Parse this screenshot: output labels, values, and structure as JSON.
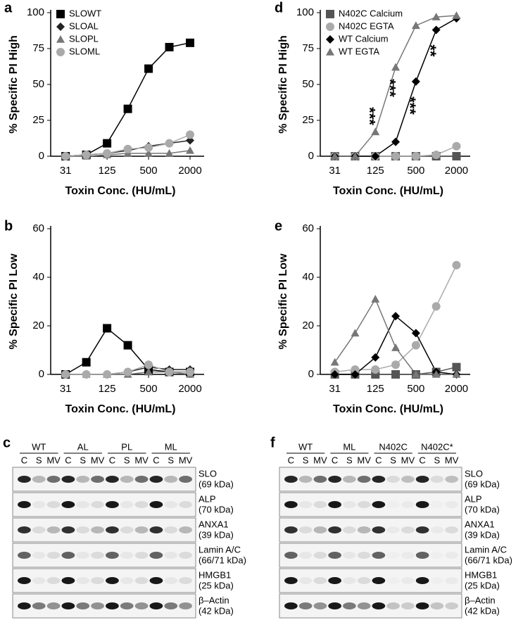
{
  "chart_data": [
    {
      "type": "line",
      "label": "a",
      "x_label": "Toxin Conc. (HU/mL)",
      "y_label": "% Specific PI High",
      "log_x": true,
      "legend": "upper left",
      "x": [
        31.25,
        62.5,
        125,
        250,
        500,
        1000,
        2000
      ],
      "xlim": [
        19,
        3200
      ],
      "xticks": [
        {
          "value": 31.25,
          "label": "31"
        },
        125,
        500,
        2000
      ],
      "ylim": [
        0,
        100
      ],
      "yticks": [
        0,
        25,
        50,
        75,
        100
      ],
      "series": [
        {
          "name": "SLOWT",
          "color": "#000000",
          "marker": "square",
          "values": [
            0,
            1,
            9,
            33,
            61,
            76,
            79
          ]
        },
        {
          "name": "SLOAL",
          "color": "#222222",
          "marker": "diamond",
          "values": [
            0,
            1,
            2,
            4,
            7,
            9,
            11
          ]
        },
        {
          "name": "SLOPL",
          "color": "#777777",
          "marker": "triangle",
          "values": [
            0,
            0,
            1,
            2,
            2,
            2,
            4
          ]
        },
        {
          "name": "SLOML",
          "color": "#aaaaaa",
          "marker": "circle",
          "values": [
            0,
            1,
            2,
            5,
            6,
            9,
            15
          ]
        }
      ]
    },
    {
      "type": "line",
      "label": "b",
      "x_label": "Toxin Conc. (HU/mL)",
      "y_label": "% Specific PI Low",
      "log_x": true,
      "x": [
        31.25,
        62.5,
        125,
        250,
        500,
        1000,
        2000
      ],
      "xlim": [
        19,
        3200
      ],
      "xticks": [
        {
          "value": 31.25,
          "label": "31"
        },
        125,
        500,
        2000
      ],
      "ylim": [
        0,
        60
      ],
      "yticks": [
        0,
        20,
        40,
        60
      ],
      "series": [
        {
          "color": "#000000",
          "marker": "square",
          "values": [
            0,
            5,
            19,
            12,
            2,
            1,
            1
          ]
        },
        {
          "color": "#222222",
          "marker": "diamond",
          "values": [
            0,
            0,
            0,
            1,
            3,
            2,
            2
          ]
        },
        {
          "color": "#777777",
          "marker": "triangle",
          "values": [
            0,
            0,
            0,
            0,
            1,
            1,
            0
          ]
        },
        {
          "color": "#aaaaaa",
          "marker": "circle",
          "values": [
            0,
            0,
            0,
            1,
            4,
            1,
            1
          ]
        }
      ]
    },
    {
      "type": "line",
      "label": "d",
      "x_label": "Toxin Conc. (HU/mL)",
      "y_label": "% Specific PI High",
      "log_x": true,
      "legend": "upper left",
      "x": [
        31.25,
        62.5,
        125,
        250,
        500,
        1000,
        2000
      ],
      "xlim": [
        19,
        3200
      ],
      "xticks": [
        {
          "value": 31.25,
          "label": "31"
        },
        125,
        500,
        2000
      ],
      "ylim": [
        0,
        100
      ],
      "yticks": [
        0,
        25,
        50,
        75,
        100
      ],
      "annotations": [
        {
          "text": "***",
          "x": 125
        },
        {
          "text": "***",
          "x": 250
        },
        {
          "text": "***",
          "x": 500
        },
        {
          "text": "**",
          "x": 1000
        }
      ],
      "series": [
        {
          "name": "N402C Calcium",
          "color": "#555555",
          "marker": "square",
          "values": [
            0,
            0,
            0,
            0,
            0,
            0,
            0
          ]
        },
        {
          "name": "N402C EGTA",
          "color": "#aaaaaa",
          "marker": "circle",
          "values": [
            0,
            0,
            0,
            0,
            0,
            1,
            7
          ]
        },
        {
          "name": "WT Calcium",
          "color": "#000000",
          "marker": "diamond",
          "values": [
            0,
            0,
            0,
            10,
            52,
            88,
            96
          ]
        },
        {
          "name": "WT EGTA",
          "color": "#777777",
          "marker": "triangle",
          "values": [
            0,
            0,
            17,
            62,
            91,
            97,
            98
          ]
        }
      ]
    },
    {
      "type": "line",
      "label": "e",
      "x_label": "Toxin Conc. (HU/mL)",
      "y_label": "% Specific PI Low",
      "log_x": true,
      "x": [
        31.25,
        62.5,
        125,
        250,
        500,
        1000,
        2000
      ],
      "xlim": [
        19,
        3200
      ],
      "xticks": [
        {
          "value": 31.25,
          "label": "31"
        },
        125,
        500,
        2000
      ],
      "ylim": [
        0,
        60
      ],
      "yticks": [
        0,
        20,
        40,
        60
      ],
      "series": [
        {
          "color": "#555555",
          "marker": "square",
          "values": [
            0,
            0,
            0,
            0,
            0,
            1,
            3
          ]
        },
        {
          "color": "#aaaaaa",
          "marker": "circle",
          "values": [
            1,
            2,
            2,
            4,
            12,
            28,
            45
          ]
        },
        {
          "color": "#000000",
          "marker": "diamond",
          "values": [
            0,
            0,
            7,
            24,
            17,
            1,
            0
          ]
        },
        {
          "color": "#777777",
          "marker": "triangle",
          "values": [
            5,
            17,
            31,
            11,
            0,
            0,
            0
          ]
        }
      ]
    }
  ],
  "blots": [
    {
      "label": "c",
      "groups": [
        "WT",
        "AL",
        "PL",
        "ML"
      ],
      "lanes": [
        "C",
        "S",
        "MV"
      ],
      "rows": [
        {
          "name": "SLO",
          "size": "(69 kDa)"
        },
        {
          "name": "ALP",
          "size": "(70 kDa)"
        },
        {
          "name": "ANXA1",
          "size": "(39 kDa)"
        },
        {
          "name": "Lamin A/C",
          "size": "(66/71 kDa)"
        },
        {
          "name": "HMGB1",
          "size": "(25 kDa)"
        },
        {
          "name": "β–Actin",
          "size": "(42 kDa)"
        }
      ]
    },
    {
      "label": "f",
      "groups": [
        "WT",
        "ML",
        "N402C",
        "N402C*"
      ],
      "lanes": [
        "C",
        "S",
        "MV"
      ],
      "rows": [
        {
          "name": "SLO",
          "size": "(69 kDa)"
        },
        {
          "name": "ALP",
          "size": "(70 kDa)"
        },
        {
          "name": "ANXA1",
          "size": "(39 kDa)"
        },
        {
          "name": "Lamin A/C",
          "size": "(66/71 kDa)"
        },
        {
          "name": "HMGB1",
          "size": "(25 kDa)"
        },
        {
          "name": "β–Actin",
          "size": "(42 kDa)"
        }
      ]
    }
  ]
}
